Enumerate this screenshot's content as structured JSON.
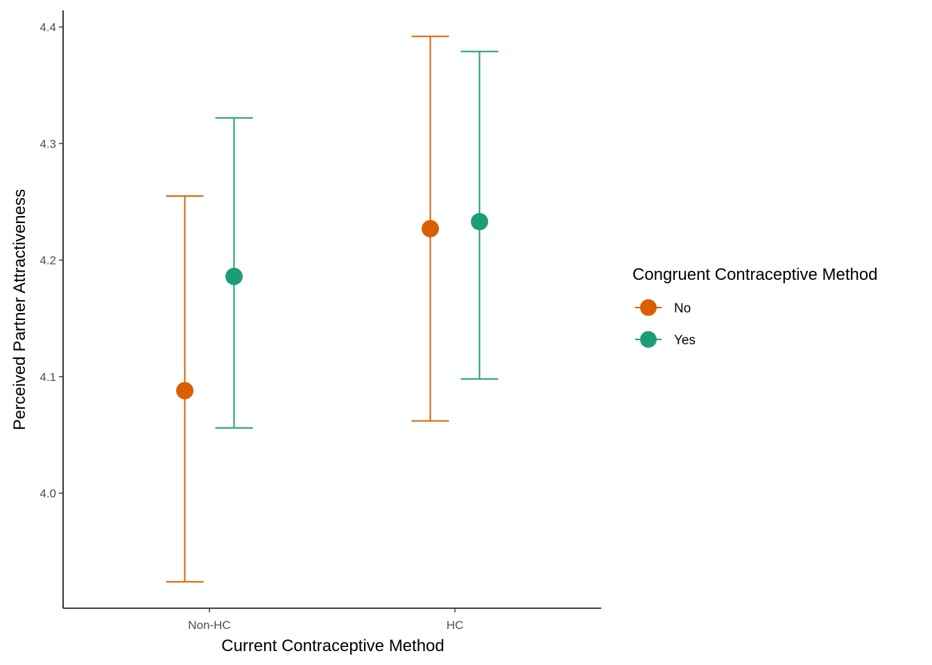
{
  "chart_data": {
    "type": "scatter",
    "title": "",
    "xlabel": "Current Contraceptive Method",
    "ylabel": "Perceived Partner Attractiveness",
    "categories": [
      "Non-HC",
      "HC"
    ],
    "ylim": [
      3.9,
      4.4
    ],
    "yticks": [
      "4.0",
      "4.1",
      "4.2",
      "4.3",
      "4.4"
    ],
    "grid": false,
    "legend": {
      "title": "Congruent Contraceptive Method",
      "placement": "right"
    },
    "series": [
      {
        "name": "No",
        "color": "#D95F02",
        "points": [
          {
            "category": "Non-HC",
            "mean": 4.088,
            "lower": 3.924,
            "upper": 4.255
          },
          {
            "category": "HC",
            "mean": 4.227,
            "lower": 4.062,
            "upper": 4.392
          }
        ]
      },
      {
        "name": "Yes",
        "color": "#1B9E77",
        "points": [
          {
            "category": "Non-HC",
            "mean": 4.186,
            "lower": 4.056,
            "upper": 4.322
          },
          {
            "category": "HC",
            "mean": 4.233,
            "lower": 4.098,
            "upper": 4.379
          }
        ]
      }
    ]
  }
}
